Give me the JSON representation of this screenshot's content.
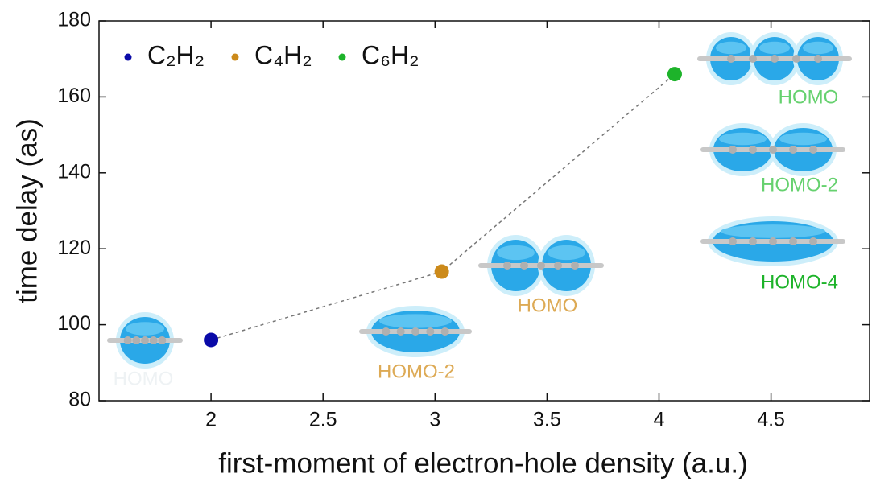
{
  "chart_data": {
    "type": "scatter",
    "xlabel": "first-moment of electron-hole density (a.u.)",
    "ylabel": "time delay (as)",
    "xlim": [
      1.5,
      4.94
    ],
    "xticks": [
      2,
      2.5,
      3,
      3.5,
      4,
      4.5
    ],
    "ylim": [
      80,
      180
    ],
    "yticks": [
      80,
      100,
      120,
      140,
      160,
      180
    ],
    "connect": "dashed",
    "legend": "upper left",
    "series": [
      {
        "name": "C₂H₂",
        "color": "#0a0aa8",
        "x": [
          2.0
        ],
        "values": [
          96
        ]
      },
      {
        "name": "C₄H₂",
        "color": "#cc8a1a",
        "x": [
          3.03
        ],
        "values": [
          114
        ]
      },
      {
        "name": "C₆H₂",
        "color": "#1db32a",
        "x": [
          4.07
        ],
        "values": [
          166
        ]
      }
    ],
    "annotations": [
      {
        "text": "HOMO",
        "color": "#eef2f4"
      },
      {
        "text": "HOMO-2",
        "color": "#ddaa55"
      },
      {
        "text": "HOMO",
        "color": "#ddaa55"
      },
      {
        "text": "HOMO",
        "color": "#66d16f"
      },
      {
        "text": "HOMO-2",
        "color": "#66d16f"
      },
      {
        "text": "HOMO-4",
        "color": "#1db32a"
      }
    ]
  }
}
